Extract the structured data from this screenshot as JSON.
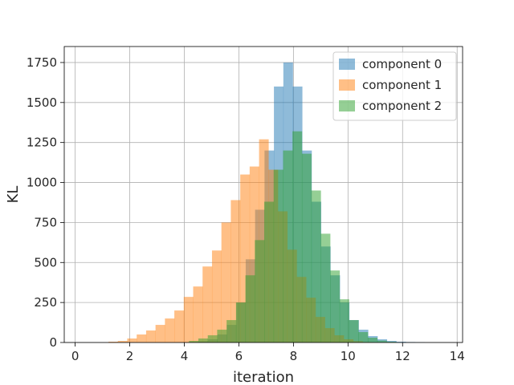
{
  "chart_data": {
    "type": "bar",
    "histogram": true,
    "title": "",
    "xlabel": "iteration",
    "ylabel": "KL",
    "xlim": [
      -0.4,
      14.2
    ],
    "ylim": [
      0,
      1850
    ],
    "xticks": [
      0,
      2,
      4,
      6,
      8,
      10,
      12,
      14
    ],
    "yticks": [
      0,
      250,
      500,
      750,
      1000,
      1250,
      1500,
      1750
    ],
    "grid": true,
    "legend_position": "top-right",
    "series": [
      {
        "name": "component 0",
        "color": "#1f77b4",
        "alpha": 0.5,
        "bin_start": 4.18,
        "bin_width": 0.345,
        "values": [
          3,
          8,
          20,
          50,
          110,
          250,
          520,
          830,
          1200,
          1600,
          1750,
          1600,
          1200,
          880,
          600,
          420,
          250,
          140,
          80,
          40,
          20,
          10,
          5,
          3,
          2
        ]
      },
      {
        "name": "component 1",
        "color": "#ff7f0e",
        "alpha": 0.5,
        "bin_start": 1.22,
        "bin_width": 0.345,
        "values": [
          5,
          10,
          25,
          50,
          75,
          110,
          150,
          200,
          285,
          350,
          475,
          575,
          750,
          890,
          1050,
          1100,
          1270,
          1080,
          820,
          580,
          410,
          280,
          160,
          90,
          45,
          20,
          8,
          3
        ]
      },
      {
        "name": "component 2",
        "color": "#2ca02c",
        "alpha": 0.5,
        "bin_start": 4.17,
        "bin_width": 0.345,
        "values": [
          10,
          25,
          45,
          80,
          140,
          250,
          420,
          640,
          880,
          1080,
          1200,
          1320,
          1180,
          950,
          680,
          450,
          270,
          140,
          65,
          30,
          12,
          5
        ]
      }
    ]
  }
}
